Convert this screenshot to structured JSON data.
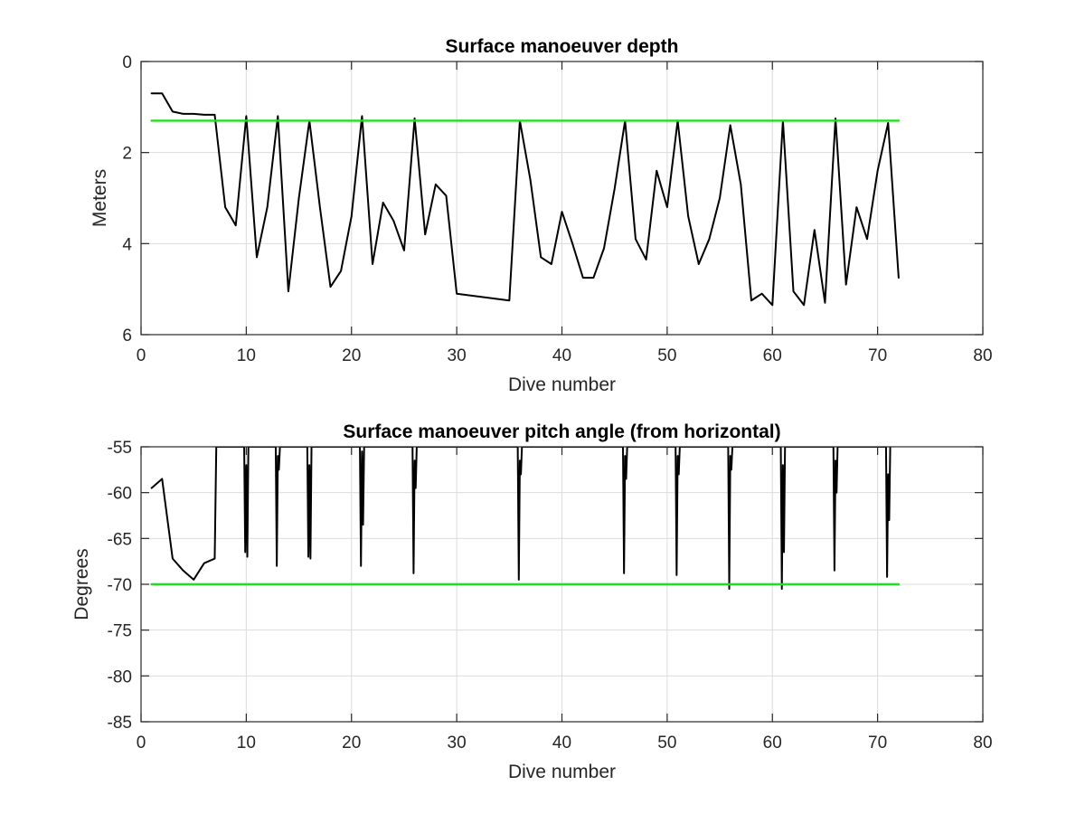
{
  "chart_data": [
    {
      "type": "line",
      "title": "Surface manoeuver depth",
      "xlabel": "Dive number",
      "ylabel": "Meters",
      "xlim": [
        0,
        80
      ],
      "ylim": [
        0,
        6
      ],
      "y_reversed": true,
      "grid": true,
      "xticks": [
        0,
        10,
        20,
        30,
        40,
        50,
        60,
        70,
        80
      ],
      "yticks": [
        0,
        2,
        4,
        6
      ],
      "series": [
        {
          "color": "#000000",
          "x": [
            1,
            2,
            3,
            4,
            5,
            6,
            7,
            8,
            9,
            10,
            11,
            12,
            13,
            14,
            15,
            16,
            17,
            18,
            19,
            20,
            21,
            22,
            23,
            24,
            25,
            26,
            27,
            28,
            29,
            30,
            35,
            36,
            37,
            38,
            39,
            40,
            41,
            42,
            43,
            44,
            45,
            46,
            47,
            48,
            49,
            50,
            51,
            52,
            53,
            54,
            55,
            56,
            57,
            58,
            59,
            60,
            61,
            62,
            63,
            64,
            65,
            66,
            67,
            68,
            69,
            70,
            71,
            72
          ],
          "y": [
            0.7,
            0.7,
            1.1,
            1.15,
            1.15,
            1.17,
            1.17,
            3.2,
            3.6,
            1.2,
            4.3,
            3.2,
            1.2,
            5.05,
            3.0,
            1.3,
            3.2,
            4.95,
            4.6,
            3.4,
            1.2,
            4.45,
            3.1,
            3.5,
            4.15,
            1.25,
            3.8,
            2.7,
            2.95,
            5.1,
            5.25,
            1.3,
            2.6,
            4.3,
            4.45,
            3.3,
            4.0,
            4.75,
            4.75,
            4.1,
            2.8,
            1.3,
            3.9,
            4.35,
            2.4,
            3.2,
            1.3,
            3.4,
            4.45,
            3.9,
            3.0,
            1.4,
            2.7,
            5.25,
            5.1,
            5.35,
            1.3,
            5.05,
            5.35,
            3.7,
            5.3,
            1.25,
            4.9,
            3.2,
            3.9,
            2.4,
            1.35,
            4.75
          ]
        },
        {
          "color": "#1fe01f",
          "x": [
            1,
            72
          ],
          "y": [
            1.3,
            1.3
          ]
        }
      ]
    },
    {
      "type": "line",
      "title": "Surface manoeuver pitch angle (from horizontal)",
      "xlabel": "Dive number",
      "ylabel": "Degrees",
      "xlim": [
        0,
        80
      ],
      "ylim": [
        -85,
        -55
      ],
      "grid": true,
      "xticks": [
        0,
        10,
        20,
        30,
        40,
        50,
        60,
        70,
        80
      ],
      "yticks": [
        -55,
        -60,
        -65,
        -70,
        -75,
        -80,
        -85
      ],
      "series": [
        {
          "color": "#000000",
          "x": [
            1,
            2,
            3,
            4,
            5,
            6,
            7,
            7.15,
            9.8,
            9.9,
            10.0,
            10.1,
            10.2,
            12.8,
            12.9,
            13.0,
            13.1,
            13.2,
            15.8,
            15.9,
            16.0,
            16.1,
            16.2,
            20.8,
            20.9,
            21.0,
            21.1,
            21.2,
            25.8,
            25.9,
            26.0,
            26.1,
            26.2,
            35.8,
            35.9,
            36.0,
            36.1,
            36.2,
            45.8,
            45.9,
            46.0,
            46.1,
            46.2,
            50.8,
            50.9,
            51.0,
            51.1,
            51.2,
            55.8,
            55.9,
            56.0,
            56.1,
            56.2,
            60.8,
            60.9,
            61.0,
            61.1,
            61.2,
            65.8,
            65.9,
            66.0,
            66.1,
            66.2,
            70.8,
            70.9,
            71.0,
            71.1,
            71.2
          ],
          "y": [
            -59.5,
            -58.5,
            -67.2,
            -68.5,
            -69.5,
            -67.7,
            -67.2,
            -55,
            -55,
            -66.5,
            -57,
            -67,
            -55,
            -55,
            -68,
            -56,
            -57.5,
            -55,
            -55,
            -67,
            -57,
            -67.2,
            -55,
            -55,
            -68,
            -55.5,
            -63.5,
            -55,
            -55,
            -68.8,
            -56.5,
            -59.5,
            -55,
            -55,
            -69.5,
            -56.5,
            -58,
            -55,
            -55,
            -68.8,
            -56,
            -58.5,
            -55,
            -55,
            -69,
            -56,
            -58,
            -55,
            -55,
            -70.5,
            -56,
            -57.5,
            -55,
            -55,
            -70.5,
            -57,
            -66.5,
            -55,
            -55,
            -68.5,
            -56.5,
            -60,
            -55,
            -55,
            -69.2,
            -58,
            -63,
            -55
          ]
        },
        {
          "color": "#1fe01f",
          "x": [
            1,
            72
          ],
          "y": [
            -70,
            -70
          ]
        }
      ]
    }
  ]
}
